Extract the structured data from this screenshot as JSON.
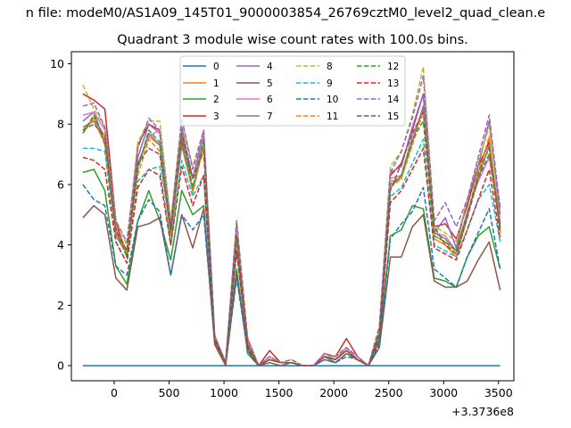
{
  "figure": {
    "suptitle": "n file: modeM0/AS1A09_145T01_9000003854_26769cztM0_level2_quad_clean.e",
    "title": "Quadrant 3 module wise count rates with 100.0s bins.",
    "offset_label": "+3.3736e8"
  },
  "chart_data": {
    "type": "line",
    "title": "Quadrant 3 module wise count rates with 100.0s bins.",
    "xlabel": "",
    "ylabel": "",
    "x_offset": 337360000,
    "xlim": [
      -390,
      3640
    ],
    "ylim": [
      -0.5,
      10.4
    ],
    "xticks": [
      0,
      500,
      1000,
      1500,
      2000,
      2500,
      3000,
      3500
    ],
    "yticks": [
      0,
      2,
      4,
      6,
      8,
      10
    ],
    "grid": false,
    "legend": {
      "placement": "upper center",
      "columns": 4
    },
    "x": [
      -285,
      -185,
      -85,
      15,
      115,
      215,
      315,
      415,
      515,
      615,
      715,
      815,
      915,
      1015,
      1115,
      1215,
      1315,
      1415,
      1515,
      1615,
      1715,
      1815,
      1915,
      2015,
      2115,
      2215,
      2315,
      2415,
      2515,
      2615,
      2715,
      2815,
      2915,
      3015,
      3115,
      3215,
      3315,
      3415,
      3515
    ],
    "series": [
      {
        "name": "0",
        "color": "#1f77b4",
        "dash": "solid",
        "values": [
          0,
          0,
          0,
          0,
          0,
          0,
          0,
          0,
          0,
          0,
          0,
          0,
          0,
          0,
          0,
          0,
          0,
          0,
          0,
          0,
          0,
          0,
          0,
          0,
          0,
          0,
          0,
          0,
          0,
          0,
          0,
          0,
          0,
          0,
          0,
          0,
          0,
          0,
          0
        ]
      },
      {
        "name": "1",
        "color": "#ff7f0e",
        "dash": "solid",
        "values": [
          7.8,
          8.2,
          7.6,
          4.6,
          3.8,
          6.6,
          7.6,
          7.3,
          4.4,
          7.6,
          5.8,
          7.3,
          0.9,
          0.1,
          4.2,
          0.7,
          0.0,
          0.2,
          0.1,
          0.1,
          0.0,
          0.0,
          0.3,
          0.2,
          0.5,
          0.2,
          0.0,
          1.0,
          6.1,
          6.2,
          7.4,
          8.6,
          4.2,
          4.0,
          3.6,
          4.9,
          6.4,
          7.5,
          4.4
        ]
      },
      {
        "name": "2",
        "color": "#2ca02c",
        "dash": "solid",
        "values": [
          6.4,
          6.5,
          5.8,
          3.3,
          2.7,
          4.8,
          5.8,
          4.8,
          3.5,
          5.8,
          5.0,
          5.3,
          0.8,
          0.1,
          3.2,
          0.4,
          0.0,
          0.2,
          0.1,
          0.1,
          0.0,
          0.0,
          0.3,
          0.1,
          0.4,
          0.2,
          0.0,
          0.8,
          4.3,
          4.5,
          5.3,
          5.2,
          2.9,
          2.8,
          2.6,
          3.6,
          4.3,
          4.6,
          3.2
        ]
      },
      {
        "name": "3",
        "color": "#d62728",
        "dash": "solid",
        "values": [
          9.0,
          8.8,
          8.5,
          4.8,
          3.6,
          7.3,
          8.0,
          7.8,
          4.6,
          7.4,
          6.2,
          7.7,
          0.9,
          0.1,
          4.3,
          0.9,
          0.0,
          0.5,
          0.1,
          0.1,
          0.0,
          0.0,
          0.4,
          0.3,
          0.9,
          0.3,
          0.0,
          1.1,
          6.3,
          6.7,
          7.8,
          9.0,
          4.6,
          4.7,
          4.2,
          5.3,
          6.6,
          7.4,
          4.7
        ]
      },
      {
        "name": "4",
        "color": "#9467bd",
        "dash": "solid",
        "values": [
          8.1,
          8.4,
          7.4,
          4.4,
          3.8,
          6.9,
          8.0,
          7.7,
          4.4,
          7.9,
          6.2,
          7.7,
          1.0,
          0.1,
          4.7,
          0.8,
          0.0,
          0.3,
          0.1,
          0.1,
          0.0,
          0.0,
          0.4,
          0.2,
          0.6,
          0.2,
          0.0,
          1.1,
          6.4,
          6.6,
          7.9,
          9.0,
          4.4,
          4.9,
          3.9,
          5.5,
          6.6,
          8.1,
          5.0
        ]
      },
      {
        "name": "5",
        "color": "#8c564b",
        "dash": "solid",
        "values": [
          4.9,
          5.3,
          5.0,
          2.9,
          2.5,
          4.6,
          4.7,
          4.9,
          3.0,
          5.0,
          3.9,
          5.2,
          0.7,
          0.0,
          3.0,
          0.5,
          0.0,
          0.1,
          0.0,
          0.1,
          0.0,
          0.0,
          0.2,
          0.1,
          0.4,
          0.2,
          0.0,
          0.6,
          3.6,
          3.6,
          4.6,
          5.0,
          2.8,
          2.6,
          2.6,
          2.8,
          3.5,
          4.1,
          2.5
        ]
      },
      {
        "name": "6",
        "color": "#e377c2",
        "dash": "solid",
        "values": [
          8.3,
          8.4,
          7.8,
          4.6,
          3.7,
          6.7,
          7.6,
          7.8,
          4.4,
          7.7,
          5.8,
          7.7,
          0.9,
          0.1,
          4.5,
          0.8,
          0.0,
          0.3,
          0.1,
          0.1,
          0.0,
          0.0,
          0.4,
          0.2,
          0.6,
          0.2,
          0.0,
          1.0,
          6.2,
          6.3,
          7.6,
          8.5,
          4.4,
          4.3,
          3.8,
          5.1,
          6.1,
          6.9,
          4.8
        ]
      },
      {
        "name": "7",
        "color": "#7f7f7f",
        "dash": "solid",
        "values": [
          7.9,
          8.1,
          7.4,
          4.3,
          3.7,
          6.6,
          7.7,
          7.3,
          4.3,
          7.3,
          5.8,
          7.4,
          0.9,
          0.1,
          4.2,
          0.7,
          0.0,
          0.2,
          0.1,
          0.1,
          0.0,
          0.0,
          0.3,
          0.2,
          0.5,
          0.2,
          0.0,
          1.0,
          5.9,
          6.3,
          7.4,
          8.6,
          4.4,
          4.2,
          3.8,
          5.0,
          6.2,
          7.3,
          4.6
        ]
      },
      {
        "name": "8",
        "color": "#bcbd22",
        "dash": "dashed",
        "values": [
          9.3,
          8.5,
          7.9,
          4.8,
          4.0,
          7.4,
          8.1,
          8.1,
          4.8,
          8.1,
          6.6,
          7.8,
          1.0,
          0.1,
          4.8,
          0.9,
          0.0,
          0.3,
          0.1,
          0.2,
          0.0,
          0.0,
          0.4,
          0.3,
          0.6,
          0.3,
          0.0,
          1.3,
          6.6,
          7.1,
          8.3,
          9.9,
          4.6,
          4.4,
          4.1,
          5.5,
          6.8,
          7.9,
          5.3
        ]
      },
      {
        "name": "9",
        "color": "#17becf",
        "dash": "dashed",
        "values": [
          7.2,
          7.2,
          7.1,
          4.1,
          3.4,
          6.1,
          6.5,
          6.6,
          4.0,
          6.8,
          5.6,
          6.3,
          0.8,
          0.1,
          3.8,
          0.6,
          0.0,
          0.2,
          0.1,
          0.1,
          0.0,
          0.0,
          0.3,
          0.2,
          0.5,
          0.2,
          0.0,
          0.9,
          5.6,
          5.9,
          6.7,
          7.5,
          4.0,
          3.8,
          3.6,
          4.5,
          5.5,
          6.0,
          4.1
        ]
      },
      {
        "name": "10",
        "color": "#1f77b4",
        "dash": "dashed",
        "values": [
          6.0,
          5.5,
          5.3,
          3.3,
          3.0,
          4.8,
          5.5,
          5.1,
          3.0,
          5.0,
          4.5,
          5.0,
          0.8,
          0.1,
          2.9,
          0.5,
          0.0,
          0.2,
          0.1,
          0.1,
          0.0,
          0.0,
          0.2,
          0.1,
          0.3,
          0.2,
          0.0,
          0.7,
          4.2,
          4.7,
          5.1,
          5.9,
          3.2,
          2.9,
          2.6,
          3.6,
          4.4,
          5.2,
          3.2
        ]
      },
      {
        "name": "11",
        "color": "#ff7f0e",
        "dash": "dashed",
        "values": [
          7.7,
          8.2,
          7.3,
          4.4,
          3.7,
          6.3,
          7.5,
          7.1,
          4.3,
          7.6,
          5.7,
          7.3,
          0.9,
          0.1,
          4.1,
          0.7,
          0.0,
          0.2,
          0.1,
          0.1,
          0.0,
          0.0,
          0.3,
          0.2,
          0.5,
          0.2,
          0.0,
          1.0,
          5.9,
          6.2,
          7.3,
          8.4,
          4.3,
          4.1,
          3.7,
          4.9,
          6.3,
          7.6,
          4.5
        ]
      },
      {
        "name": "12",
        "color": "#2ca02c",
        "dash": "dashed",
        "values": [
          7.7,
          8.3,
          7.4,
          4.5,
          3.6,
          6.5,
          7.8,
          7.4,
          4.4,
          7.6,
          5.9,
          7.5,
          0.9,
          0.1,
          4.3,
          0.7,
          0.0,
          0.2,
          0.1,
          0.1,
          0.0,
          0.0,
          0.3,
          0.2,
          0.5,
          0.2,
          0.0,
          1.0,
          6.0,
          6.3,
          7.5,
          8.1,
          4.3,
          4.1,
          3.8,
          5.0,
          6.4,
          7.2,
          4.6
        ]
      },
      {
        "name": "13",
        "color": "#d62728",
        "dash": "dashed",
        "values": [
          6.9,
          6.8,
          6.5,
          4.1,
          3.4,
          5.9,
          6.5,
          6.3,
          4.0,
          6.6,
          5.3,
          6.3,
          0.8,
          0.1,
          3.8,
          0.6,
          0.0,
          0.2,
          0.1,
          0.1,
          0.0,
          0.0,
          0.3,
          0.2,
          0.5,
          0.2,
          0.0,
          0.9,
          5.4,
          5.8,
          6.5,
          7.2,
          3.9,
          3.7,
          3.5,
          4.5,
          5.5,
          6.5,
          4.2
        ]
      },
      {
        "name": "14",
        "color": "#9467bd",
        "dash": "dashed",
        "values": [
          8.6,
          8.7,
          7.9,
          4.8,
          4.1,
          7.2,
          8.2,
          7.8,
          4.7,
          8.2,
          6.5,
          7.8,
          1.0,
          0.1,
          4.8,
          0.9,
          0.0,
          0.3,
          0.1,
          0.2,
          0.0,
          0.0,
          0.4,
          0.3,
          0.6,
          0.3,
          0.0,
          1.3,
          6.4,
          7.1,
          8.2,
          9.6,
          4.8,
          5.4,
          4.6,
          5.5,
          6.9,
          8.3,
          5.2
        ]
      },
      {
        "name": "15",
        "color": "#8c564b",
        "dash": "dashed",
        "values": [
          7.8,
          8.0,
          7.6,
          4.5,
          3.8,
          6.7,
          7.2,
          7.0,
          4.5,
          7.7,
          6.2,
          7.1,
          0.9,
          0.1,
          4.3,
          0.7,
          0.0,
          0.2,
          0.1,
          0.1,
          0.0,
          0.0,
          0.3,
          0.2,
          0.5,
          0.2,
          0.0,
          1.1,
          5.8,
          6.7,
          7.7,
          8.4,
          4.6,
          4.0,
          3.7,
          4.9,
          6.2,
          7.0,
          4.5
        ]
      }
    ]
  }
}
